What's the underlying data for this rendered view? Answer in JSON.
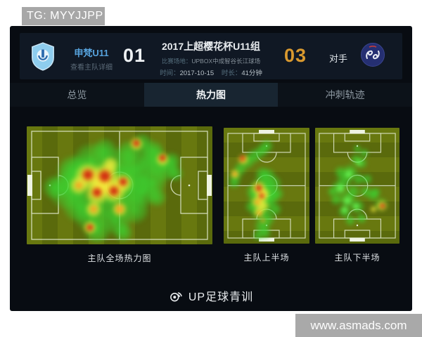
{
  "watermarks": {
    "top_left": "TG: MYYJJPP",
    "bottom_right": "www.asmads.com"
  },
  "header": {
    "home": {
      "name": "申梵U11",
      "detail_link": "查看主队详细",
      "score": "01"
    },
    "away": {
      "label": "对手",
      "score": "03"
    },
    "match": {
      "title": "2017上超樱花杯U11组",
      "venue_label": "比赛场地：",
      "venue": "UPBOX中成智谷长江球场",
      "time_label": "时间：",
      "time": "2017-10-15",
      "duration_label": "时长：",
      "duration": "41分钟"
    },
    "colors": {
      "home_name": "#57a3dd",
      "away_score": "#d9992f"
    }
  },
  "tabs": [
    {
      "label": "总览",
      "active": false
    },
    {
      "label": "热力图",
      "active": true
    },
    {
      "label": "冲刺轨迹",
      "active": false
    }
  ],
  "footer": {
    "brand": "UP足球青训",
    "icon": "weibo-icon"
  },
  "heat_ramp": {
    "g": "#39d632",
    "bg": "#6eff5a",
    "y": "#f6ee3c",
    "o": "#fa961e",
    "r": "#cd1e0f"
  },
  "heatmaps": [
    {
      "label": "主队全场热力图",
      "orientation": "landscape",
      "points": [
        [
          30,
          45,
          36,
          "g"
        ],
        [
          22,
          55,
          28,
          "g"
        ],
        [
          35,
          30,
          28,
          "g"
        ],
        [
          48,
          35,
          30,
          "g"
        ],
        [
          55,
          50,
          32,
          "g"
        ],
        [
          45,
          62,
          32,
          "g"
        ],
        [
          35,
          75,
          26,
          "g"
        ],
        [
          28,
          68,
          24,
          "g"
        ],
        [
          60,
          35,
          26,
          "g"
        ],
        [
          68,
          30,
          22,
          "g"
        ],
        [
          74,
          36,
          20,
          "g"
        ],
        [
          62,
          55,
          24,
          "g"
        ],
        [
          68,
          47,
          20,
          "g"
        ],
        [
          58,
          70,
          22,
          "g"
        ],
        [
          48,
          80,
          22,
          "g"
        ],
        [
          38,
          88,
          20,
          "g"
        ],
        [
          62,
          15,
          16,
          "g"
        ],
        [
          68,
          21,
          16,
          "g"
        ],
        [
          55,
          22,
          18,
          "g"
        ],
        [
          42,
          20,
          18,
          "g"
        ],
        [
          25,
          38,
          24,
          "g"
        ],
        [
          15,
          52,
          18,
          "g"
        ],
        [
          52,
          90,
          14,
          "g"
        ],
        [
          78,
          30,
          14,
          "g"
        ],
        [
          80,
          40,
          12,
          "g"
        ],
        [
          70,
          60,
          14,
          "g"
        ],
        [
          33,
          42,
          20,
          "y"
        ],
        [
          42,
          44,
          22,
          "y"
        ],
        [
          47,
          55,
          18,
          "y"
        ],
        [
          38,
          57,
          17,
          "y"
        ],
        [
          52,
          48,
          14,
          "y"
        ],
        [
          36,
          70,
          12,
          "y"
        ],
        [
          59,
          15,
          10,
          "y"
        ],
        [
          73,
          28,
          10,
          "y"
        ],
        [
          34,
          86,
          10,
          "y"
        ],
        [
          50,
          70,
          11,
          "y"
        ],
        [
          28,
          50,
          14,
          "y"
        ],
        [
          45,
          33,
          12,
          "y"
        ],
        [
          40,
          50,
          16,
          "y"
        ],
        [
          33,
          41,
          12,
          "o"
        ],
        [
          42,
          42,
          13,
          "o"
        ],
        [
          47,
          55,
          11,
          "o"
        ],
        [
          38,
          56,
          10,
          "o"
        ],
        [
          52,
          47,
          9,
          "o"
        ],
        [
          50,
          70,
          8,
          "o"
        ],
        [
          36,
          70,
          7,
          "o"
        ],
        [
          28,
          50,
          7,
          "o"
        ],
        [
          59,
          14,
          7,
          "o"
        ],
        [
          73,
          27,
          7,
          "o"
        ],
        [
          34,
          86,
          7,
          "o"
        ],
        [
          33,
          41,
          8,
          "r"
        ],
        [
          42,
          42,
          9,
          "r"
        ],
        [
          47,
          55,
          7,
          "r"
        ],
        [
          38,
          56,
          7,
          "r"
        ],
        [
          52,
          47,
          6,
          "r"
        ],
        [
          59,
          14,
          5,
          "r"
        ],
        [
          73,
          27,
          5,
          "r"
        ],
        [
          34,
          86,
          5,
          "r"
        ]
      ]
    },
    {
      "label": "主队上半场",
      "orientation": "portrait",
      "points": [
        [
          50,
          16,
          10,
          "g"
        ],
        [
          44,
          20,
          10,
          "g"
        ],
        [
          36,
          24,
          11,
          "g"
        ],
        [
          28,
          29,
          11,
          "g"
        ],
        [
          20,
          35,
          10,
          "g"
        ],
        [
          14,
          41,
          10,
          "g"
        ],
        [
          12,
          47,
          9,
          "g"
        ],
        [
          45,
          50,
          16,
          "g"
        ],
        [
          50,
          55,
          16,
          "g"
        ],
        [
          40,
          60,
          15,
          "g"
        ],
        [
          48,
          65,
          15,
          "g"
        ],
        [
          42,
          72,
          14,
          "g"
        ],
        [
          50,
          78,
          13,
          "g"
        ],
        [
          45,
          85,
          12,
          "g"
        ],
        [
          55,
          60,
          13,
          "g"
        ],
        [
          62,
          57,
          10,
          "g"
        ],
        [
          58,
          48,
          12,
          "g"
        ],
        [
          35,
          55,
          12,
          "g"
        ],
        [
          33,
          68,
          10,
          "g"
        ],
        [
          60,
          70,
          10,
          "g"
        ],
        [
          52,
          42,
          12,
          "g"
        ],
        [
          45,
          40,
          11,
          "g"
        ],
        [
          48,
          91,
          9,
          "g"
        ],
        [
          40,
          93,
          8,
          "g"
        ],
        [
          23,
          27,
          8,
          "y"
        ],
        [
          13,
          40,
          7,
          "y"
        ],
        [
          41,
          52,
          11,
          "y"
        ],
        [
          44,
          59,
          10,
          "y"
        ],
        [
          39,
          64,
          9,
          "y"
        ],
        [
          41,
          73,
          8,
          "y"
        ],
        [
          46,
          67,
          9,
          "y"
        ],
        [
          47,
          57,
          9,
          "y"
        ],
        [
          22,
          27,
          6,
          "o"
        ],
        [
          41,
          52,
          7,
          "o"
        ],
        [
          44,
          59,
          6,
          "o"
        ],
        [
          13,
          40,
          5,
          "o"
        ],
        [
          39,
          64,
          5,
          "o"
        ],
        [
          42,
          74,
          5,
          "o"
        ],
        [
          46,
          80,
          4,
          "o"
        ],
        [
          22,
          26,
          4,
          "r"
        ],
        [
          41,
          52,
          5,
          "r"
        ],
        [
          44,
          59,
          4,
          "r"
        ]
      ]
    },
    {
      "label": "主队下半场",
      "orientation": "portrait",
      "points": [
        [
          42,
          38,
          12,
          "g"
        ],
        [
          35,
          45,
          12,
          "g"
        ],
        [
          28,
          52,
          12,
          "g"
        ],
        [
          38,
          62,
          12,
          "g"
        ],
        [
          50,
          68,
          11,
          "g"
        ],
        [
          35,
          72,
          10,
          "g"
        ],
        [
          45,
          55,
          11,
          "g"
        ],
        [
          55,
          30,
          9,
          "g"
        ],
        [
          52,
          44,
          9,
          "g"
        ],
        [
          60,
          55,
          9,
          "g"
        ],
        [
          68,
          58,
          9,
          "g"
        ],
        [
          25,
          62,
          9,
          "g"
        ],
        [
          48,
          27,
          8,
          "g"
        ],
        [
          58,
          22,
          7,
          "g"
        ],
        [
          62,
          44,
          8,
          "g"
        ],
        [
          72,
          56,
          8,
          "g"
        ],
        [
          55,
          78,
          8,
          "g"
        ],
        [
          42,
          80,
          8,
          "g"
        ],
        [
          30,
          38,
          9,
          "g"
        ],
        [
          20,
          55,
          7,
          "g"
        ],
        [
          78,
          66,
          10,
          "g"
        ],
        [
          50,
          18,
          6,
          "g"
        ],
        [
          40,
          40,
          7,
          "bg"
        ],
        [
          30,
          52,
          7,
          "bg"
        ],
        [
          38,
          63,
          7,
          "bg"
        ],
        [
          48,
          68,
          6,
          "bg"
        ],
        [
          35,
          71,
          6,
          "bg"
        ],
        [
          52,
          30,
          5,
          "bg"
        ],
        [
          79,
          67,
          8,
          "y"
        ],
        [
          69,
          70,
          5,
          "y"
        ],
        [
          79,
          67,
          5,
          "o"
        ],
        [
          80,
          67,
          4,
          "r"
        ]
      ]
    }
  ]
}
